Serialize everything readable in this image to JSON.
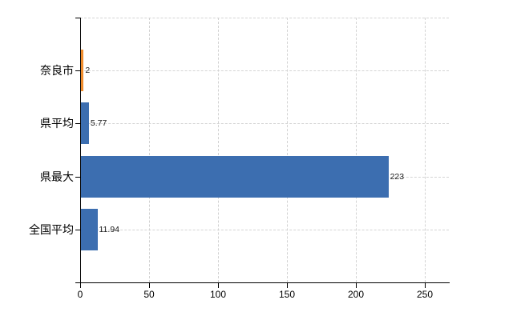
{
  "chart_data": {
    "type": "bar",
    "orientation": "horizontal",
    "title": "",
    "categories": [
      "奈良市",
      "県平均",
      "県最大",
      "全国平均"
    ],
    "values": [
      2,
      5.77,
      223,
      11.94
    ],
    "data_labels": [
      "2",
      "5.77",
      "223",
      "11.94"
    ],
    "bar_colors": [
      "#ef8c2d",
      "#3c6eb0",
      "#3c6eb0",
      "#3c6eb0"
    ],
    "x_tick_labels": [
      "0",
      "50",
      "100",
      "150",
      "200",
      "250"
    ],
    "x_tick_values": [
      0,
      50,
      100,
      150,
      200,
      250
    ],
    "xlim": [
      0,
      267.4
    ],
    "grid": true,
    "legend": false,
    "colors": {
      "background": "#ffffff",
      "axis": "#000000",
      "gridline": "#d3d3d3",
      "category_text": "#000000",
      "value_text": "#1a1a1a",
      "orange_bar": "#ef8c2d",
      "blue_bar": "#3c6eb0"
    }
  }
}
